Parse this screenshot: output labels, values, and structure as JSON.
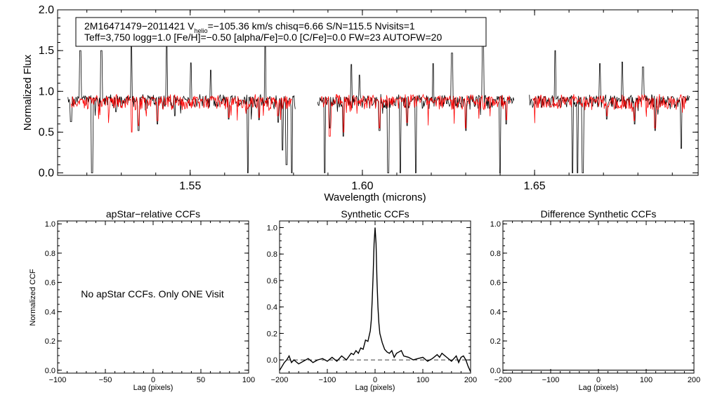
{
  "chart_data": [
    {
      "type": "line",
      "id": "spectrum",
      "title": "",
      "xlabel": "Wavelength (microns)",
      "ylabel": "Normalized Flux",
      "xlim": [
        1.5115,
        1.6975
      ],
      "ylim": [
        -0.03,
        2.0
      ],
      "xticks": [
        1.55,
        1.6,
        1.65
      ],
      "xtick_labels": [
        "1.55",
        "1.60",
        "1.65"
      ],
      "yticks": [
        0.0,
        0.5,
        1.0,
        1.5,
        2.0
      ],
      "ytick_labels": [
        "0.0",
        "0.5",
        "1.0",
        "1.5",
        "2.0"
      ],
      "info": {
        "line1": "2M16471479−2011421  V",
        "line1_sub": "helio",
        "line1_rest": "=−105.36 km/s  chisq=6.66  S/N=115.5  Nvisits=1",
        "line2": "Teff=3,750 logg=1.0 [Fe/H]=−0.50 [alpha/Fe]=0.0 [C/Fe]=0.0 FW=23 AUTOFW=20"
      },
      "chips": [
        [
          1.5145,
          1.5805
        ],
        [
          1.587,
          1.644
        ],
        [
          1.6485,
          1.695
        ]
      ],
      "model_chips": [
        [
          1.5155,
          1.5795
        ],
        [
          1.588,
          1.643
        ],
        [
          1.6495,
          1.694
        ]
      ],
      "continuum": 0.95,
      "series": [
        {
          "name": "observed",
          "color": "#000000",
          "features": [
            [
              1.5154,
              0.63
            ],
            [
              1.5181,
              1.5
            ],
            [
              1.5215,
              0.0
            ],
            [
              1.5242,
              1.5
            ],
            [
              1.5285,
              0.75
            ],
            [
              1.533,
              1.6
            ],
            [
              1.535,
              0.52
            ],
            [
              1.5405,
              0.6
            ],
            [
              1.5432,
              1.58
            ],
            [
              1.5455,
              0.7
            ],
            [
              1.5502,
              1.35
            ],
            [
              1.556,
              1.26
            ],
            [
              1.5612,
              0.66
            ],
            [
              1.5668,
              0.0
            ],
            [
              1.57,
              0.65
            ],
            [
              1.5718,
              1.62
            ],
            [
              1.5755,
              0.62
            ],
            [
              1.5768,
              0.28
            ],
            [
              1.578,
              0.1
            ],
            [
              1.5795,
              0.0
            ],
            [
              1.589,
              0.0
            ],
            [
              1.5905,
              0.55
            ],
            [
              1.5945,
              0.45
            ],
            [
              1.5968,
              1.33
            ],
            [
              1.5992,
              1.2
            ],
            [
              1.605,
              0.52
            ],
            [
              1.6075,
              0.0
            ],
            [
              1.611,
              0.0
            ],
            [
              1.613,
              0.58
            ],
            [
              1.6155,
              0.0
            ],
            [
              1.6205,
              1.34
            ],
            [
              1.626,
              1.47
            ],
            [
              1.63,
              0.52
            ],
            [
              1.635,
              1.6
            ],
            [
              1.64,
              0.0
            ],
            [
              1.6418,
              0.6
            ],
            [
              1.656,
              1.5
            ],
            [
              1.661,
              0.0
            ],
            [
              1.6625,
              0.0
            ],
            [
              1.664,
              0.0
            ],
            [
              1.669,
              1.34
            ],
            [
              1.671,
              0.66
            ],
            [
              1.6755,
              1.36
            ],
            [
              1.679,
              0.6
            ],
            [
              1.6815,
              1.3
            ],
            [
              1.685,
              0.52
            ],
            [
              1.6925,
              0.3
            ]
          ]
        },
        {
          "name": "model",
          "color": "#ff0000",
          "features": [
            [
              1.533,
              0.5
            ],
            [
              1.535,
              0.58
            ],
            [
              1.5405,
              0.64
            ],
            [
              1.5612,
              0.68
            ],
            [
              1.57,
              0.68
            ],
            [
              1.5755,
              0.7
            ],
            [
              1.5905,
              0.45
            ],
            [
              1.5945,
              0.5
            ],
            [
              1.605,
              0.55
            ],
            [
              1.613,
              0.62
            ],
            [
              1.63,
              0.55
            ],
            [
              1.6418,
              0.65
            ],
            [
              1.671,
              0.7
            ],
            [
              1.679,
              0.64
            ],
            [
              1.685,
              0.55
            ]
          ]
        }
      ]
    },
    {
      "type": "line",
      "id": "apstar",
      "title": "apStar−relative CCFs",
      "xlabel": "Lag (pixels)",
      "ylabel": "Normalized CCF",
      "xlim": [
        -100,
        100
      ],
      "ylim": [
        -0.02,
        1.02
      ],
      "xticks": [
        -100,
        -50,
        0,
        50,
        100
      ],
      "xtick_labels": [
        "−100",
        "−50",
        "0",
        "50",
        "100"
      ],
      "yticks": [
        0.0,
        0.2,
        0.4,
        0.6,
        0.8,
        1.0
      ],
      "ytick_labels": [
        "0.0",
        "0.2",
        "0.4",
        "0.6",
        "0.8",
        "1.0"
      ],
      "note": "No apStar CCFs.  Only ONE Visit",
      "series": []
    },
    {
      "type": "line",
      "id": "synthetic",
      "title": "Synthetic CCFs",
      "xlabel": "Lag (pixels)",
      "ylabel": "",
      "xlim": [
        -200,
        200
      ],
      "ylim": [
        -0.1,
        1.05
      ],
      "xticks": [
        -200,
        -100,
        0,
        100,
        200
      ],
      "xtick_labels": [
        "−200",
        "−100",
        "0",
        "100",
        "200"
      ],
      "yticks": [
        0.0,
        0.2,
        0.4,
        0.6,
        0.8,
        1.0
      ],
      "ytick_labels": [
        "0.0",
        "0.2",
        "0.4",
        "0.6",
        "0.8",
        "1.0"
      ],
      "reference_line": 0.0,
      "series": [
        {
          "name": "ccf",
          "color": "#000000",
          "x": [
            -200,
            -190,
            -185,
            -180,
            -175,
            -170,
            -160,
            -150,
            -140,
            -130,
            -120,
            -110,
            -100,
            -90,
            -80,
            -70,
            -60,
            -50,
            -45,
            -40,
            -35,
            -30,
            -25,
            -20,
            -15,
            -10,
            -8,
            -6,
            -4,
            -2,
            0,
            2,
            4,
            6,
            8,
            10,
            15,
            20,
            25,
            30,
            35,
            40,
            45,
            50,
            55,
            60,
            70,
            80,
            90,
            100,
            110,
            120,
            130,
            135,
            140,
            150,
            160,
            170,
            175,
            180,
            185,
            190,
            195,
            200
          ],
          "y": [
            -0.08,
            -0.02,
            0.0,
            0.03,
            -0.02,
            0.0,
            -0.03,
            -0.01,
            0.01,
            -0.02,
            0.0,
            0.01,
            -0.01,
            0.02,
            -0.01,
            0.03,
            0.0,
            0.05,
            0.04,
            0.07,
            0.05,
            0.09,
            0.08,
            0.15,
            0.14,
            0.22,
            0.3,
            0.45,
            0.65,
            0.88,
            1.0,
            0.88,
            0.6,
            0.4,
            0.28,
            0.2,
            0.13,
            0.08,
            0.06,
            0.05,
            0.07,
            0.02,
            0.05,
            0.06,
            0.07,
            0.03,
            0.02,
            0.0,
            0.01,
            0.02,
            -0.01,
            0.01,
            0.04,
            0.02,
            0.05,
            0.02,
            -0.01,
            0.03,
            -0.02,
            0.02,
            0.03,
            0.0,
            -0.05,
            -0.09
          ]
        }
      ]
    },
    {
      "type": "line",
      "id": "difference",
      "title": "Difference Synthetic CCFs",
      "xlabel": "Lag (pixels)",
      "ylabel": "",
      "xlim": [
        -200,
        200
      ],
      "ylim": [
        -0.02,
        1.02
      ],
      "xticks": [
        -200,
        -100,
        0,
        100,
        200
      ],
      "xtick_labels": [
        "−200",
        "−100",
        "0",
        "100",
        "200"
      ],
      "yticks": [
        0.0,
        0.2,
        0.4,
        0.6,
        0.8,
        1.0
      ],
      "ytick_labels": [
        "0.0",
        "0.2",
        "0.4",
        "0.6",
        "0.8",
        "1.0"
      ],
      "series": [
        {
          "name": "difference",
          "color": "#000000",
          "x": [
            -200,
            200
          ],
          "y": [
            0.0,
            0.0
          ]
        }
      ]
    }
  ]
}
